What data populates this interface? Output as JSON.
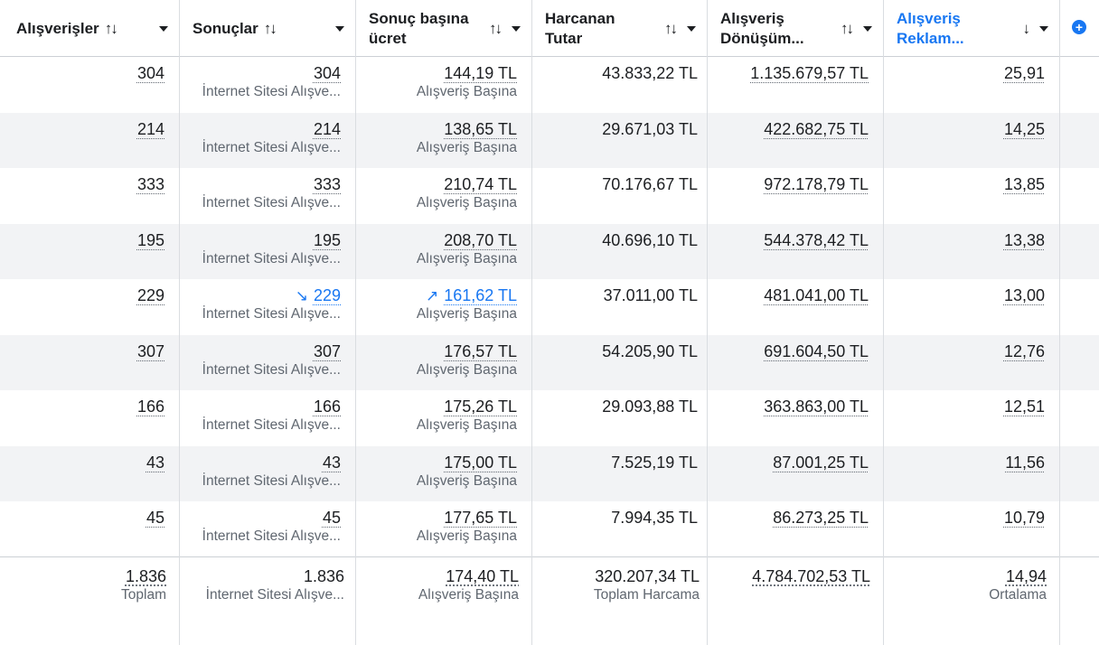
{
  "header": {
    "columns": [
      {
        "label": "Alışverişler",
        "sort": "↑↓"
      },
      {
        "label": "Sonuçlar",
        "sort": "↑↓"
      },
      {
        "label": "Sonuç başına\nücret",
        "sort": "↑↓"
      },
      {
        "label": "Harcanan\nTutar",
        "sort": "↑↓"
      },
      {
        "label": "Alışveriş\nDönüşüm...",
        "sort": "↑↓"
      },
      {
        "label": "Alışveriş\nReklam...",
        "sort": "↓"
      }
    ],
    "add_column": "+"
  },
  "rows": [
    {
      "purchases": "304",
      "results": "304",
      "results_sub": "İnternet Sitesi Alışve...",
      "cpr": "144,19 TL",
      "cpr_sub": "Alışveriş Başına",
      "spend": "43.833,22 TL",
      "conv_value": "1.135.679,57 TL",
      "roas": "25,91"
    },
    {
      "purchases": "214",
      "results": "214",
      "results_sub": "İnternet Sitesi Alışve...",
      "cpr": "138,65 TL",
      "cpr_sub": "Alışveriş Başına",
      "spend": "29.671,03 TL",
      "conv_value": "422.682,75 TL",
      "roas": "14,25"
    },
    {
      "purchases": "333",
      "results": "333",
      "results_sub": "İnternet Sitesi Alışve...",
      "cpr": "210,74 TL",
      "cpr_sub": "Alışveriş Başına",
      "spend": "70.176,67 TL",
      "conv_value": "972.178,79 TL",
      "roas": "13,85"
    },
    {
      "purchases": "195",
      "results": "195",
      "results_sub": "İnternet Sitesi Alışve...",
      "cpr": "208,70 TL",
      "cpr_sub": "Alışveriş Başına",
      "spend": "40.696,10 TL",
      "conv_value": "544.378,42 TL",
      "roas": "13,38"
    },
    {
      "purchases": "229",
      "results": "229",
      "results_sub": "İnternet Sitesi Alışve...",
      "cpr": "161,62 TL",
      "cpr_sub": "Alışveriş Başına",
      "spend": "37.011,00 TL",
      "conv_value": "481.041,00 TL",
      "roas": "13,00"
    },
    {
      "purchases": "307",
      "results": "307",
      "results_sub": "İnternet Sitesi Alışve...",
      "cpr": "176,57 TL",
      "cpr_sub": "Alışveriş Başına",
      "spend": "54.205,90 TL",
      "conv_value": "691.604,50 TL",
      "roas": "12,76"
    },
    {
      "purchases": "166",
      "results": "166",
      "results_sub": "İnternet Sitesi Alışve...",
      "cpr": "175,26 TL",
      "cpr_sub": "Alışveriş Başına",
      "spend": "29.093,88 TL",
      "conv_value": "363.863,00 TL",
      "roas": "12,51"
    },
    {
      "purchases": "43",
      "results": "43",
      "results_sub": "İnternet Sitesi Alışve...",
      "cpr": "175,00 TL",
      "cpr_sub": "Alışveriş Başına",
      "spend": "7.525,19 TL",
      "conv_value": "87.001,25 TL",
      "roas": "11,56"
    },
    {
      "purchases": "45",
      "results": "45",
      "results_sub": "İnternet Sitesi Alışve...",
      "cpr": "177,65 TL",
      "cpr_sub": "Alışveriş Başına",
      "spend": "7.994,35 TL",
      "conv_value": "86.273,25 TL",
      "roas": "10,79"
    }
  ],
  "totals": {
    "purchases": "1.836",
    "purchases_sub": "Toplam",
    "results": "1.836",
    "results_sub": "İnternet Sitesi Alışve...",
    "cpr": "174,40 TL",
    "cpr_sub": "Alışveriş Başına",
    "spend": "320.207,34 TL",
    "spend_sub": "Toplam Harcama",
    "conv_value": "4.784.702,53 TL",
    "roas": "14,94",
    "roas_sub": "Ortalama"
  },
  "indicators": {
    "trend_down_icon": "↘",
    "trend_up_icon": "↗"
  },
  "colors": {
    "accent": "#1877f2",
    "row_alt": "#f2f3f5",
    "grid": "#dadde1"
  }
}
